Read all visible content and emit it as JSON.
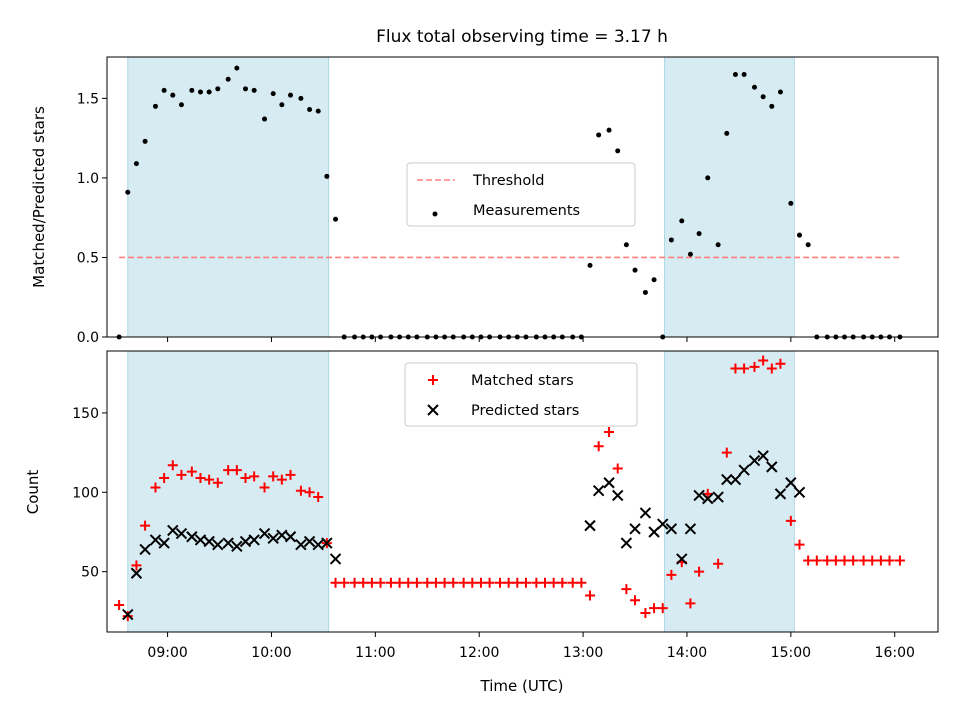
{
  "chart_data": [
    {
      "type": "scatter",
      "title": "Flux total observing time = 3.17 h",
      "xlabel": "",
      "ylabel": "Matched/Predicted stars",
      "ylim": [
        0,
        1.76
      ],
      "yticks": [
        "0.0",
        "0.5",
        "1.0",
        "1.5"
      ],
      "x_range": [
        "08:25",
        "16:25"
      ],
      "xticks": [
        "09:00",
        "10:00",
        "11:00",
        "12:00",
        "13:00",
        "14:00",
        "15:00",
        "16:00"
      ],
      "xtick_labels_shown": false,
      "shaded_intervals": [
        [
          "08:37",
          "10:33"
        ],
        [
          "13:47",
          "15:02"
        ]
      ],
      "shade_color": "#add8e6",
      "legend": {
        "position": "center",
        "entries": [
          "Threshold",
          "Measurements"
        ]
      },
      "series": [
        {
          "name": "Threshold",
          "style": "dashed-line",
          "color": "#ff7f7f",
          "x": [
            "08:32",
            "16:04"
          ],
          "y": [
            0.5,
            0.5
          ]
        },
        {
          "name": "Measurements",
          "style": "dot",
          "color": "#000000",
          "x": [
            "08:32",
            "08:37",
            "08:42",
            "08:47",
            "08:53",
            "08:58",
            "09:03",
            "09:08",
            "09:14",
            "09:19",
            "09:24",
            "09:29",
            "09:35",
            "09:40",
            "09:45",
            "09:50",
            "09:56",
            "10:01",
            "10:06",
            "10:11",
            "10:17",
            "10:22",
            "10:27",
            "10:32",
            "10:37",
            "10:42",
            "10:48",
            "10:53",
            "10:58",
            "11:03",
            "11:09",
            "11:14",
            "11:19",
            "11:24",
            "11:30",
            "11:35",
            "11:40",
            "11:45",
            "11:51",
            "11:56",
            "12:01",
            "12:06",
            "12:12",
            "12:17",
            "12:22",
            "12:27",
            "12:33",
            "12:38",
            "12:43",
            "12:48",
            "12:54",
            "12:59",
            "13:04",
            "13:09",
            "13:15",
            "13:20",
            "13:25",
            "13:30",
            "13:36",
            "13:41",
            "13:46",
            "13:51",
            "13:57",
            "14:02",
            "14:07",
            "14:12",
            "14:18",
            "14:23",
            "14:28",
            "14:33",
            "14:39",
            "14:44",
            "14:49",
            "14:54",
            "15:00",
            "15:05",
            "15:10",
            "15:15",
            "15:21",
            "15:26",
            "15:31",
            "15:36",
            "15:42",
            "15:47",
            "15:52",
            "15:57",
            "16:03"
          ],
          "y": [
            0.0,
            0.91,
            1.09,
            1.23,
            1.45,
            1.55,
            1.52,
            1.46,
            1.55,
            1.54,
            1.54,
            1.56,
            1.62,
            1.69,
            1.56,
            1.55,
            1.37,
            1.53,
            1.46,
            1.52,
            1.5,
            1.43,
            1.42,
            1.01,
            0.74,
            0,
            0,
            0,
            0,
            0,
            0,
            0,
            0,
            0,
            0,
            0,
            0,
            0,
            0,
            0,
            0,
            0,
            0,
            0,
            0,
            0,
            0,
            0,
            0,
            0,
            0,
            0,
            0.45,
            1.27,
            1.3,
            1.17,
            0.58,
            0.42,
            0.28,
            0.36,
            0.0,
            0.61,
            0.73,
            0.52,
            0.65,
            1.0,
            0.58,
            1.28,
            1.65,
            1.65,
            1.57,
            1.51,
            1.45,
            1.54,
            0.84,
            0.64,
            0.58,
            0,
            0,
            0,
            0,
            0,
            0,
            0,
            0,
            0,
            0
          ]
        }
      ]
    },
    {
      "type": "scatter",
      "title": "",
      "xlabel": "Time (UTC)",
      "ylabel": "Count",
      "ylim": [
        12,
        189
      ],
      "yticks": [
        "50",
        "100",
        "150"
      ],
      "x_range": [
        "08:25",
        "16:25"
      ],
      "xticks": [
        "09:00",
        "10:00",
        "11:00",
        "12:00",
        "13:00",
        "14:00",
        "15:00",
        "16:00"
      ],
      "shaded_intervals": [
        [
          "08:37",
          "10:33"
        ],
        [
          "13:47",
          "15:02"
        ]
      ],
      "shade_color": "#add8e6",
      "legend": {
        "position": "top-center",
        "entries": [
          "Matched stars",
          "Predicted stars"
        ]
      },
      "series": [
        {
          "name": "Matched stars",
          "marker": "+",
          "color": "#ff0000",
          "x": [
            "08:32",
            "08:37",
            "08:42",
            "08:47",
            "08:53",
            "08:58",
            "09:03",
            "09:08",
            "09:14",
            "09:19",
            "09:24",
            "09:29",
            "09:35",
            "09:40",
            "09:45",
            "09:50",
            "09:56",
            "10:01",
            "10:06",
            "10:11",
            "10:17",
            "10:22",
            "10:27",
            "10:32",
            "10:37",
            "10:42",
            "10:48",
            "10:53",
            "10:58",
            "11:03",
            "11:09",
            "11:14",
            "11:19",
            "11:24",
            "11:30",
            "11:35",
            "11:40",
            "11:45",
            "11:51",
            "11:56",
            "12:01",
            "12:06",
            "12:12",
            "12:17",
            "12:22",
            "12:27",
            "12:33",
            "12:38",
            "12:43",
            "12:48",
            "12:54",
            "12:59",
            "13:04",
            "13:09",
            "13:15",
            "13:20",
            "13:25",
            "13:30",
            "13:36",
            "13:41",
            "13:46",
            "13:51",
            "13:57",
            "14:02",
            "14:07",
            "14:12",
            "14:18",
            "14:23",
            "14:28",
            "14:33",
            "14:39",
            "14:44",
            "14:49",
            "14:54",
            "15:00",
            "15:05",
            "15:10",
            "15:15",
            "15:21",
            "15:26",
            "15:31",
            "15:36",
            "15:42",
            "15:47",
            "15:52",
            "15:57",
            "16:03"
          ],
          "y": [
            29,
            22,
            54,
            79,
            103,
            109,
            117,
            111,
            113,
            109,
            108,
            106,
            114,
            114,
            109,
            110,
            103,
            110,
            108,
            111,
            101,
            100,
            97,
            68,
            43,
            43,
            43,
            43,
            43,
            43,
            43,
            43,
            43,
            43,
            43,
            43,
            43,
            43,
            43,
            43,
            43,
            43,
            43,
            43,
            43,
            43,
            43,
            43,
            43,
            43,
            43,
            43,
            35,
            129,
            138,
            115,
            39,
            32,
            24,
            27,
            27,
            48,
            56,
            30,
            50,
            99,
            55,
            125,
            178,
            178,
            179,
            183,
            178,
            181,
            82,
            67,
            57,
            57,
            57,
            57,
            57,
            57,
            57,
            57,
            57,
            57,
            57
          ]
        },
        {
          "name": "Predicted stars",
          "marker": "x",
          "color": "#000000",
          "x": [
            "08:37",
            "08:42",
            "08:47",
            "08:53",
            "08:58",
            "09:03",
            "09:08",
            "09:14",
            "09:19",
            "09:24",
            "09:29",
            "09:35",
            "09:40",
            "09:45",
            "09:50",
            "09:56",
            "10:01",
            "10:06",
            "10:11",
            "10:17",
            "10:22",
            "10:27",
            "10:32",
            "10:37",
            "13:04",
            "13:09",
            "13:15",
            "13:20",
            "13:25",
            "13:30",
            "13:36",
            "13:41",
            "13:46",
            "13:51",
            "13:57",
            "14:02",
            "14:07",
            "14:12",
            "14:18",
            "14:23",
            "14:28",
            "14:33",
            "14:39",
            "14:44",
            "14:49",
            "14:54",
            "15:00",
            "15:05"
          ],
          "y": [
            23,
            49,
            64,
            70,
            68,
            76,
            74,
            72,
            70,
            69,
            67,
            68,
            66,
            69,
            70,
            74,
            71,
            73,
            72,
            67,
            69,
            67,
            68,
            58,
            79,
            101,
            106,
            98,
            68,
            77,
            87,
            75,
            80,
            77,
            58,
            77,
            98,
            96,
            97,
            108,
            108,
            114,
            120,
            123,
            116,
            99,
            106,
            100
          ]
        }
      ]
    }
  ]
}
